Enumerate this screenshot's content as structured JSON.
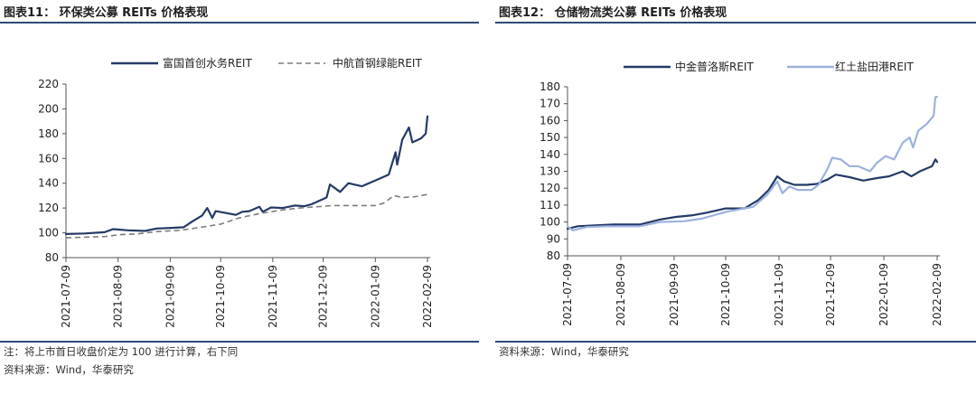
{
  "figures": [
    {
      "title": "图表11： 环保类公募 REITs 价格表现",
      "notes": [
        "注：将上市首日收盘价定为 100 进行计算，右下同",
        "资料来源：Wind，华泰研究"
      ]
    },
    {
      "title": "图表12： 仓储物流类公募 REITs 价格表现",
      "notes": [
        "资料来源：Wind，华泰研究"
      ]
    }
  ],
  "colors": {
    "navy": "#253a66",
    "gray": "#7d7d7d",
    "lightblue": "#9db2dd",
    "rule": "#2e4a7a"
  },
  "chart_data": [
    {
      "type": "line",
      "title": "",
      "xlabel": "",
      "ylabel": "",
      "ylim": [
        80,
        220
      ],
      "y_ticks": [
        80,
        100,
        120,
        140,
        160,
        180,
        200,
        220
      ],
      "x_range": [
        "2021-07-09",
        "2022-02-09"
      ],
      "x_ticks": [
        "2021-07-09",
        "2021-08-09",
        "2021-09-09",
        "2021-10-09",
        "2021-11-09",
        "2021-12-09",
        "2022-01-09",
        "2022-02-09"
      ],
      "grid": false,
      "legend_position": "top-right",
      "series": [
        {
          "name": "富国首创水务REIT",
          "style": "solid",
          "color": "#253a66",
          "points": [
            [
              "2021-07-09",
              99
            ],
            [
              "2021-07-20",
              99.5
            ],
            [
              "2021-08-01",
              100.5
            ],
            [
              "2021-08-06",
              103
            ],
            [
              "2021-08-15",
              102
            ],
            [
              "2021-08-25",
              101.5
            ],
            [
              "2021-09-01",
              103.5
            ],
            [
              "2021-09-10",
              104
            ],
            [
              "2021-09-17",
              104.5
            ],
            [
              "2021-09-22",
              109
            ],
            [
              "2021-09-28",
              114
            ],
            [
              "2021-10-01",
              120
            ],
            [
              "2021-10-04",
              112
            ],
            [
              "2021-10-06",
              117.5
            ],
            [
              "2021-10-12",
              116
            ],
            [
              "2021-10-18",
              114.5
            ],
            [
              "2021-10-22",
              117
            ],
            [
              "2021-10-26",
              117.5
            ],
            [
              "2021-11-01",
              121
            ],
            [
              "2021-11-03",
              117
            ],
            [
              "2021-11-08",
              120.5
            ],
            [
              "2021-11-15",
              120
            ],
            [
              "2021-11-22",
              122
            ],
            [
              "2021-11-28",
              121.5
            ],
            [
              "2021-12-02",
              123
            ],
            [
              "2021-12-07",
              126
            ],
            [
              "2021-12-11",
              128.5
            ],
            [
              "2021-12-13",
              139
            ],
            [
              "2021-12-16",
              136
            ],
            [
              "2021-12-19",
              133
            ],
            [
              "2021-12-24",
              140
            ],
            [
              "2022-01-01",
              137.5
            ],
            [
              "2022-01-07",
              141
            ],
            [
              "2022-01-12",
              144
            ],
            [
              "2022-01-17",
              147
            ],
            [
              "2022-01-21",
              165
            ],
            [
              "2022-01-22",
              155
            ],
            [
              "2022-01-25",
              175
            ],
            [
              "2022-01-29",
              185
            ],
            [
              "2022-01-31",
              173
            ],
            [
              "2022-02-05",
              176
            ],
            [
              "2022-02-08",
              180
            ],
            [
              "2022-02-09",
              194
            ]
          ]
        },
        {
          "name": "中航首钢绿能REIT",
          "style": "dashed",
          "color": "#7d7d7d",
          "points": [
            [
              "2021-07-09",
              96
            ],
            [
              "2021-07-20",
              96.5
            ],
            [
              "2021-08-01",
              97
            ],
            [
              "2021-08-10",
              98.5
            ],
            [
              "2021-08-20",
              99
            ],
            [
              "2021-09-01",
              101
            ],
            [
              "2021-09-15",
              102
            ],
            [
              "2021-09-25",
              104
            ],
            [
              "2021-10-09",
              107
            ],
            [
              "2021-10-20",
              112
            ],
            [
              "2021-11-01",
              115.5
            ],
            [
              "2021-11-15",
              118.5
            ],
            [
              "2021-11-25",
              120
            ],
            [
              "2021-12-05",
              121
            ],
            [
              "2021-12-15",
              122
            ],
            [
              "2021-12-25",
              122
            ],
            [
              "2022-01-09",
              122
            ],
            [
              "2022-01-14",
              124
            ],
            [
              "2022-01-20",
              130
            ],
            [
              "2022-01-25",
              128.5
            ],
            [
              "2022-02-01",
              129
            ],
            [
              "2022-02-09",
              131
            ]
          ]
        }
      ]
    },
    {
      "type": "line",
      "title": "",
      "xlabel": "",
      "ylabel": "",
      "ylim": [
        80,
        180
      ],
      "y_ticks": [
        80,
        90,
        100,
        110,
        120,
        130,
        140,
        150,
        160,
        170,
        180
      ],
      "x_range": [
        "2021-07-09",
        "2022-02-09"
      ],
      "x_ticks": [
        "2021-07-09",
        "2021-08-09",
        "2021-09-09",
        "2021-10-09",
        "2021-11-09",
        "2021-12-09",
        "2022-01-09",
        "2022-02-09"
      ],
      "grid": false,
      "legend_position": "top-right",
      "series": [
        {
          "name": "中金普洛斯REIT",
          "style": "solid",
          "color": "#253a66",
          "points": [
            [
              "2021-07-09",
              96
            ],
            [
              "2021-07-15",
              97.5
            ],
            [
              "2021-07-25",
              98
            ],
            [
              "2021-08-05",
              98.5
            ],
            [
              "2021-08-20",
              98.5
            ],
            [
              "2021-09-01",
              101.5
            ],
            [
              "2021-09-10",
              103
            ],
            [
              "2021-09-20",
              104
            ],
            [
              "2021-09-28",
              105.5
            ],
            [
              "2021-10-09",
              108
            ],
            [
              "2021-10-20",
              108
            ],
            [
              "2021-10-28",
              113
            ],
            [
              "2021-11-03",
              119
            ],
            [
              "2021-11-08",
              127
            ],
            [
              "2021-11-12",
              124
            ],
            [
              "2021-11-18",
              122
            ],
            [
              "2021-11-25",
              122
            ],
            [
              "2021-12-01",
              122.5
            ],
            [
              "2021-12-07",
              125
            ],
            [
              "2021-12-12",
              128
            ],
            [
              "2021-12-20",
              126.5
            ],
            [
              "2021-12-28",
              124.5
            ],
            [
              "2022-01-05",
              126
            ],
            [
              "2022-01-12",
              127
            ],
            [
              "2022-01-20",
              130
            ],
            [
              "2022-01-25",
              127
            ],
            [
              "2022-01-30",
              130
            ],
            [
              "2022-02-06",
              133
            ],
            [
              "2022-02-08",
              137
            ],
            [
              "2022-02-09",
              135.5
            ]
          ]
        },
        {
          "name": "红土盐田港REIT",
          "style": "solid",
          "color": "#9db2dd",
          "points": [
            [
              "2021-07-09",
              97.5
            ],
            [
              "2021-07-12",
              95
            ],
            [
              "2021-07-20",
              97
            ],
            [
              "2021-08-01",
              97.5
            ],
            [
              "2021-08-20",
              97.5
            ],
            [
              "2021-09-01",
              100
            ],
            [
              "2021-09-15",
              100.5
            ],
            [
              "2021-09-25",
              102
            ],
            [
              "2021-10-09",
              106
            ],
            [
              "2021-10-25",
              109
            ],
            [
              "2021-11-02",
              116
            ],
            [
              "2021-11-08",
              124
            ],
            [
              "2021-11-11",
              117
            ],
            [
              "2021-11-15",
              121
            ],
            [
              "2021-11-20",
              119
            ],
            [
              "2021-11-28",
              119
            ],
            [
              "2021-12-02",
              122
            ],
            [
              "2021-12-07",
              131
            ],
            [
              "2021-12-10",
              138
            ],
            [
              "2021-12-15",
              137
            ],
            [
              "2021-12-20",
              133
            ],
            [
              "2021-12-25",
              133
            ],
            [
              "2022-01-01",
              130
            ],
            [
              "2022-01-05",
              135
            ],
            [
              "2022-01-10",
              139
            ],
            [
              "2022-01-15",
              137
            ],
            [
              "2022-01-20",
              147
            ],
            [
              "2022-01-24",
              150
            ],
            [
              "2022-01-26",
              144
            ],
            [
              "2022-01-29",
              154
            ],
            [
              "2022-02-03",
              158
            ],
            [
              "2022-02-07",
              163
            ],
            [
              "2022-02-08",
              174
            ],
            [
              "2022-02-09",
              174
            ]
          ]
        }
      ]
    }
  ]
}
